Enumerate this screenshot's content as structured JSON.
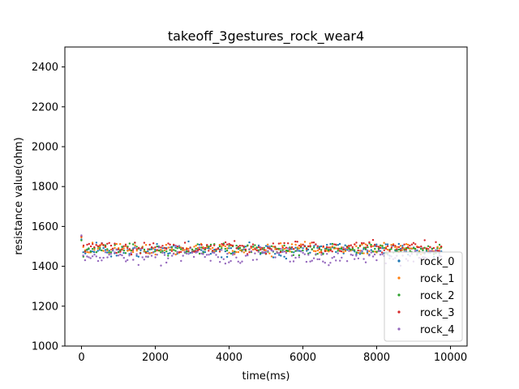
{
  "chart_data": {
    "type": "scatter",
    "title": "takeoff_3gestures_rock_wear4",
    "xlabel": "time(ms)",
    "ylabel": "resistance value(ohm)",
    "xlim": [
      -450,
      10450
    ],
    "ylim": [
      1000,
      2500
    ],
    "xticks": [
      0,
      2000,
      4000,
      6000,
      8000,
      10000
    ],
    "yticks": [
      1000,
      1200,
      1400,
      1600,
      1800,
      2000,
      2200,
      2400
    ],
    "x_start": 0,
    "x_step": 50,
    "num_points": 196,
    "legend_position": "lower-right",
    "series": [
      {
        "name": "rock_0",
        "color": "#1f77b4",
        "start": 1535,
        "mean": 1480,
        "spread": 22,
        "amp": 8,
        "period": 2000,
        "seed": 11
      },
      {
        "name": "rock_1",
        "color": "#ff7f0e",
        "start": 1545,
        "mean": 1488,
        "spread": 20,
        "amp": 7,
        "period": 2600,
        "seed": 23
      },
      {
        "name": "rock_2",
        "color": "#2ca02c",
        "start": 1530,
        "mean": 1485,
        "spread": 21,
        "amp": 6,
        "period": 3100,
        "seed": 37
      },
      {
        "name": "rock_3",
        "color": "#d62728",
        "start": 1550,
        "mean": 1495,
        "spread": 19,
        "amp": 7,
        "period": 1800,
        "seed": 41
      },
      {
        "name": "rock_4",
        "color": "#9467bd",
        "start": 1555,
        "mean": 1455,
        "spread": 30,
        "amp": 10,
        "period": 2300,
        "seed": 53
      }
    ]
  }
}
